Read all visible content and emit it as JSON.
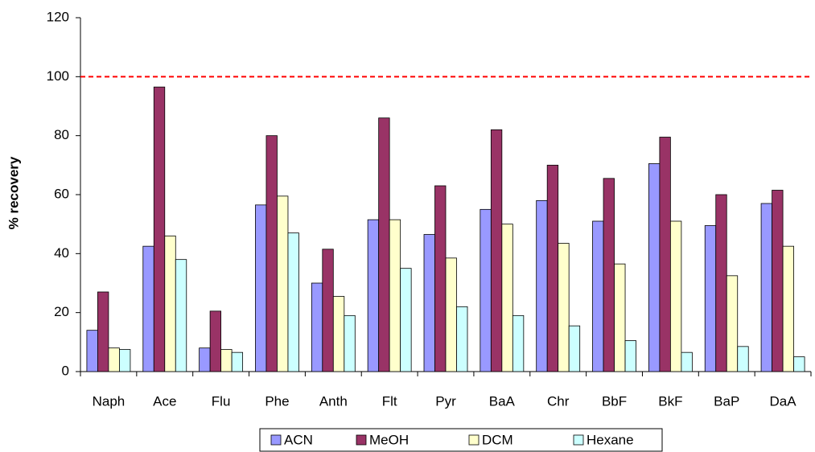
{
  "chart_data": {
    "type": "bar",
    "y_label": "% recovery",
    "categories": [
      "Naph",
      "Ace",
      "Flu",
      "Phe",
      "Anth",
      "Flt",
      "Pyr",
      "BaA",
      "Chr",
      "BbF",
      "BkF",
      "BaP",
      "DaA"
    ],
    "series": [
      {
        "name": "ACN",
        "color": "#9999ff",
        "values": [
          14,
          42.5,
          8,
          56.5,
          30,
          51.5,
          46.5,
          55,
          58,
          51,
          70.5,
          49.5,
          57
        ]
      },
      {
        "name": "MeOH",
        "color": "#993366",
        "values": [
          27,
          96.5,
          20.5,
          80,
          41.5,
          86,
          63,
          82,
          70,
          65.5,
          79.5,
          60,
          61.5
        ]
      },
      {
        "name": "DCM",
        "color": "#ffffcc",
        "values": [
          8,
          46,
          7.5,
          59.5,
          25.5,
          51.5,
          38.5,
          50,
          43.5,
          36.5,
          51,
          32.5,
          42.5
        ]
      },
      {
        "name": "Hexane",
        "color": "#ccffff",
        "values": [
          7.5,
          38,
          6.5,
          47,
          19,
          35,
          22,
          19,
          15.5,
          10.5,
          6.5,
          8.5,
          5
        ]
      }
    ],
    "reference_line": 100,
    "reference_color": "#ff0000",
    "ylim": [
      0,
      120
    ],
    "yticks": [
      0,
      20,
      40,
      60,
      80,
      100,
      120
    ],
    "legend": "bottom"
  }
}
